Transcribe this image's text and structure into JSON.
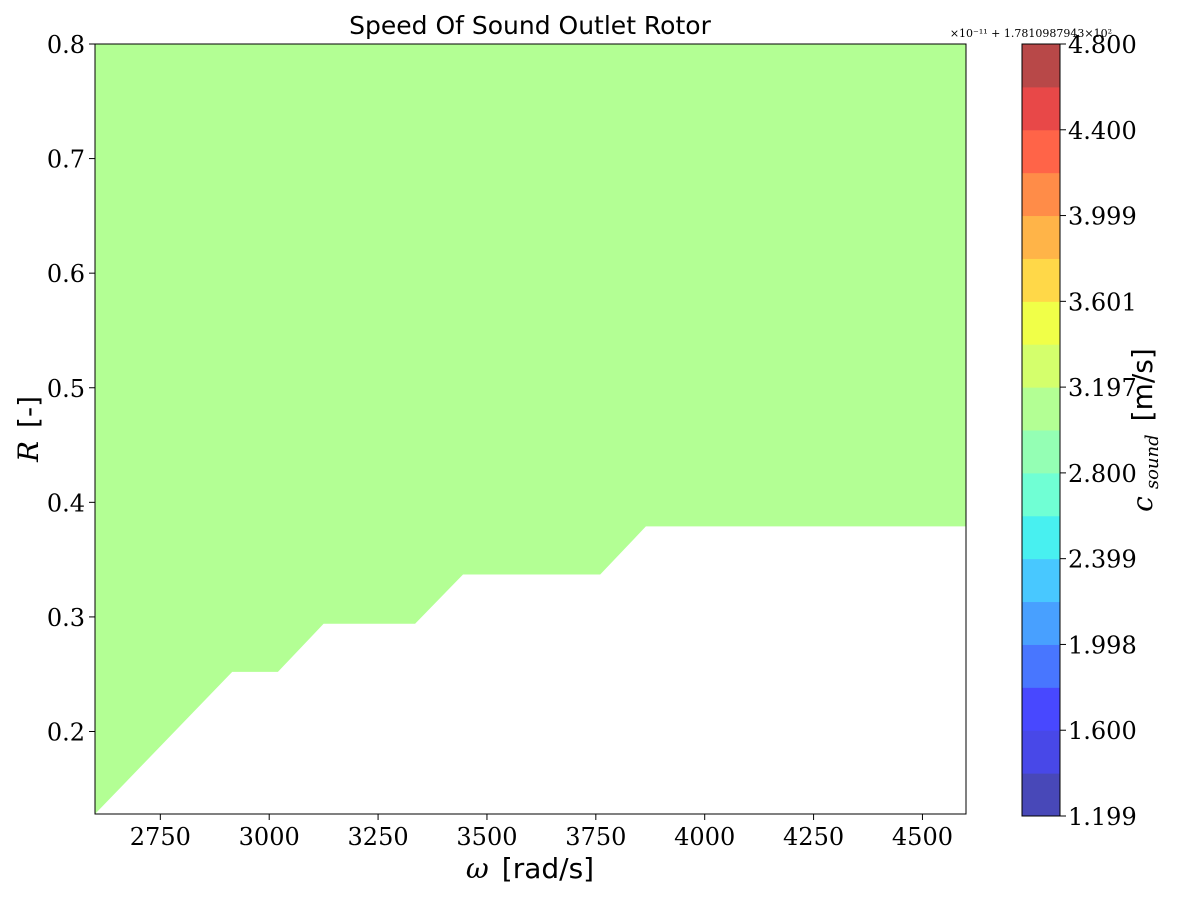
{
  "chart_data": {
    "type": "contour",
    "title": "Speed Of Sound Outlet Rotor",
    "xlabel_symbol": "ω",
    "xlabel_unit": "[rad/s]",
    "ylabel_symbol": "R",
    "ylabel_unit": "[-]",
    "xlim": [
      2600,
      4600
    ],
    "ylim": [
      0.128,
      0.8
    ],
    "x_ticks": [
      2750,
      3000,
      3250,
      3500,
      3750,
      4000,
      4250,
      4500
    ],
    "y_ticks": [
      0.2,
      0.3,
      0.4,
      0.5,
      0.6,
      0.7,
      0.8
    ],
    "filled_region": {
      "color": "#b3ff94",
      "lower_boundary": [
        [
          2600,
          0.128
        ],
        [
          2915,
          0.252
        ],
        [
          3020,
          0.252
        ],
        [
          3125,
          0.294
        ],
        [
          3335,
          0.294
        ],
        [
          3445,
          0.337
        ],
        [
          3760,
          0.337
        ],
        [
          3865,
          0.379
        ],
        [
          4600,
          0.379
        ]
      ]
    },
    "colorbar": {
      "label_symbol": "c",
      "label_subscript": "sound",
      "label_unit": "[m/s]",
      "offset_text": "×10⁻¹¹ + 1.7810987943×10²",
      "tick_labels": [
        "1.199",
        "1.600",
        "1.998",
        "2.399",
        "2.800",
        "3.197",
        "3.601",
        "3.999",
        "4.400",
        "4.800"
      ],
      "levels_colors": [
        "#4848b8",
        "#4848e8",
        "#4848ff",
        "#4876ff",
        "#48a0ff",
        "#48c8ff",
        "#48f0f0",
        "#70ffd4",
        "#94ffb4",
        "#b3ff94",
        "#d4ff6c",
        "#f0ff48",
        "#ffd848",
        "#ffb448",
        "#ff8c48",
        "#ff6448",
        "#e84848",
        "#b84848"
      ]
    }
  }
}
